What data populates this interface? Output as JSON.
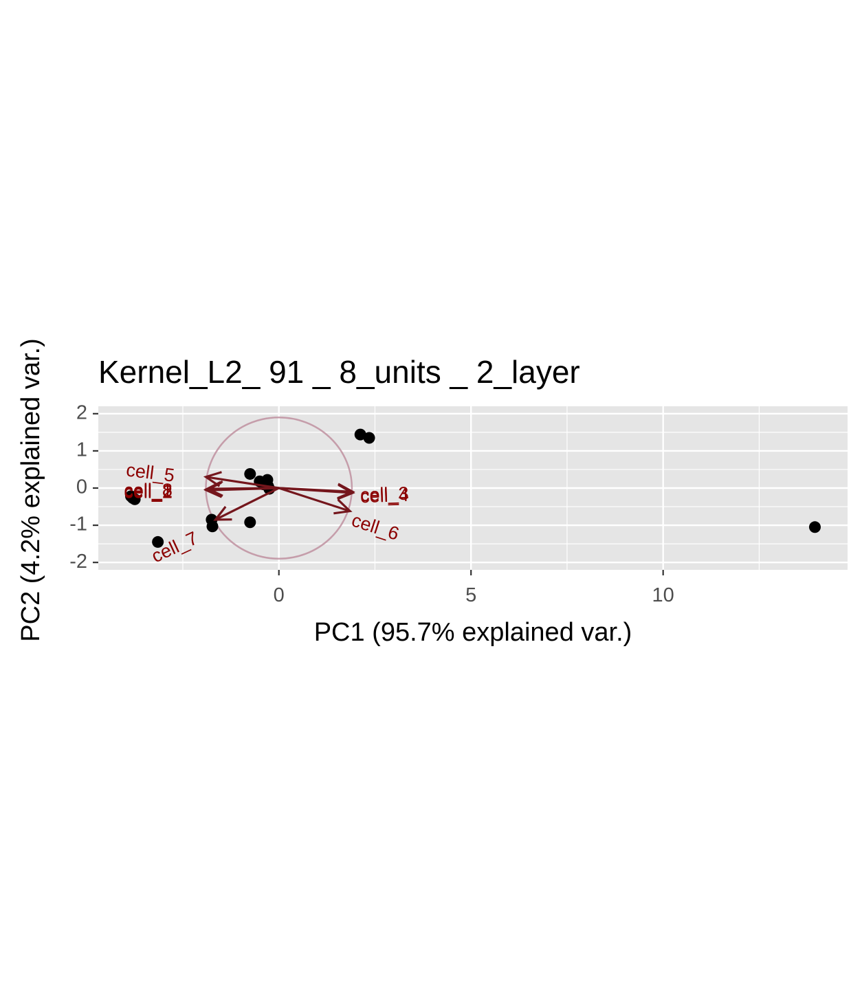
{
  "chart_data": {
    "type": "scatter",
    "title": "Kernel_L2_ 91 _ 8_units _ 2_layer",
    "xlabel": "PC1 (95.7% explained var.)",
    "ylabel": "PC2 (4.2% explained var.)",
    "xlim": [
      -4.7,
      14.8
    ],
    "ylim": [
      -2.2,
      2.2
    ],
    "x_ticks": [
      0,
      5,
      10
    ],
    "y_ticks": [
      -2,
      -1,
      0,
      1,
      2
    ],
    "x_tick_labels": [
      "0",
      "5",
      "10"
    ],
    "y_tick_labels": [
      "-2",
      "-1",
      "0",
      "1",
      "2"
    ],
    "grid": true,
    "legend": "none",
    "colors": {
      "panel": "#e5e5e5",
      "grid": "#ffffff",
      "points": "#000000",
      "arrows": "#74161c",
      "labels": "#8b0000",
      "circle": "#c090a0"
    },
    "points": [
      {
        "x": -3.8,
        "y": -0.27
      },
      {
        "x": -3.85,
        "y": -0.22
      },
      {
        "x": -3.75,
        "y": -0.3
      },
      {
        "x": -3.15,
        "y": -1.45
      },
      {
        "x": -1.75,
        "y": -0.85
      },
      {
        "x": -1.73,
        "y": -1.03
      },
      {
        "x": -0.75,
        "y": 0.38
      },
      {
        "x": -0.75,
        "y": -0.92
      },
      {
        "x": -0.5,
        "y": 0.18
      },
      {
        "x": -0.4,
        "y": 0.1
      },
      {
        "x": -0.3,
        "y": 0.22
      },
      {
        "x": -0.28,
        "y": 0.05
      },
      {
        "x": -0.25,
        "y": -0.02
      },
      {
        "x": 2.12,
        "y": 1.44
      },
      {
        "x": 2.35,
        "y": 1.35
      },
      {
        "x": 13.95,
        "y": -1.05
      }
    ],
    "correlation_circle": {
      "center": [
        0,
        0
      ],
      "radius": 1.9
    },
    "loadings": [
      {
        "label": "cell_1",
        "x": -1.9,
        "y": -0.04
      },
      {
        "label": "cell_2",
        "x": -1.88,
        "y": -0.06
      },
      {
        "label": "cell_3",
        "x": 1.92,
        "y": -0.1
      },
      {
        "label": "cell_4",
        "x": 1.92,
        "y": -0.13
      },
      {
        "label": "cell_5",
        "x": -1.9,
        "y": 0.3
      },
      {
        "label": "cell_6",
        "x": 1.85,
        "y": -0.62
      },
      {
        "label": "cell_7",
        "x": -1.65,
        "y": -0.85
      },
      {
        "label": "cell_8",
        "x": -1.85,
        "y": -0.02
      }
    ],
    "loading_labels": [
      {
        "text": "cell_5",
        "x": -3.35,
        "y": 0.38,
        "rotate": 7
      },
      {
        "text": "cell_1",
        "x": -3.4,
        "y": -0.12,
        "rotate": 0
      },
      {
        "text": "cell_2",
        "x": -3.4,
        "y": -0.14,
        "rotate": 0
      },
      {
        "text": "cell_8",
        "x": -3.4,
        "y": -0.09,
        "rotate": 0
      },
      {
        "text": "cell_4",
        "x": 2.75,
        "y": -0.24,
        "rotate": -2
      },
      {
        "text": "cell_3",
        "x": 2.75,
        "y": -0.2,
        "rotate": -2
      },
      {
        "text": "cell_6",
        "x": 2.5,
        "y": -1.08,
        "rotate": 18
      },
      {
        "text": "cell_7",
        "x": -2.7,
        "y": -1.62,
        "rotate": -25
      }
    ]
  }
}
